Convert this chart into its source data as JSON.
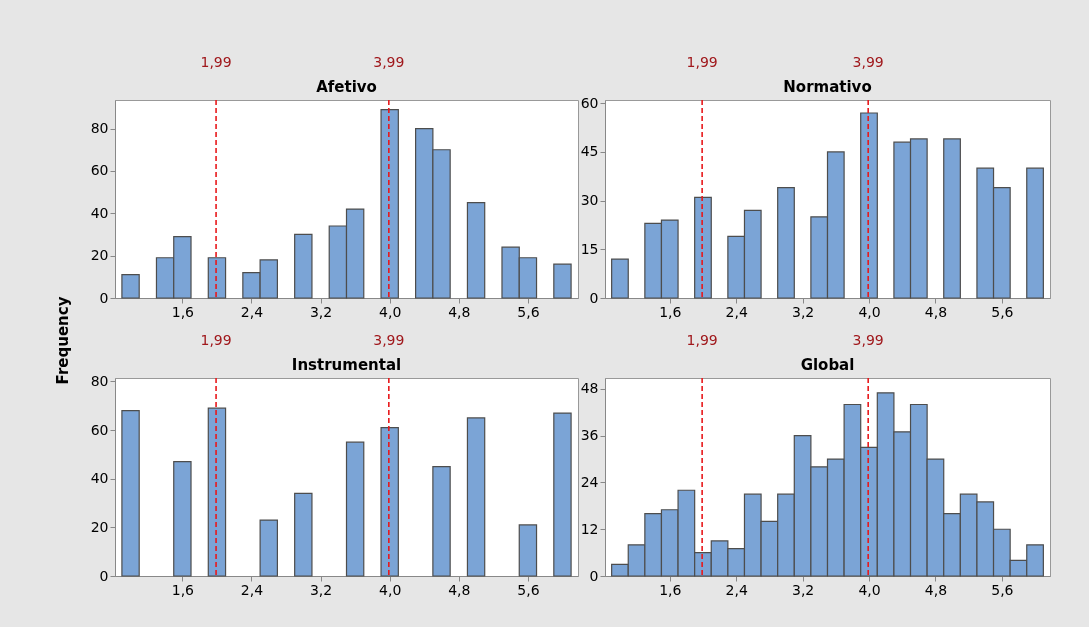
{
  "chart_data": [
    {
      "type": "histogram",
      "title": "Afetivo",
      "ylabel": "Frequency",
      "color": "#7ba4d6",
      "bins": [
        0.9,
        1.1,
        1.3,
        1.5,
        1.7,
        1.9,
        2.1,
        2.3,
        2.5,
        2.7,
        2.9,
        3.1,
        3.3,
        3.5,
        3.7,
        3.9,
        4.1,
        4.3,
        4.5,
        4.7,
        4.9,
        5.1,
        5.3,
        5.5,
        5.7,
        5.9,
        6.1
      ],
      "values": [
        11,
        0,
        19,
        29,
        0,
        19,
        0,
        12,
        18,
        0,
        30,
        0,
        34,
        42,
        0,
        89,
        0,
        80,
        70,
        0,
        45,
        0,
        24,
        19,
        0,
        16
      ],
      "xlim": [
        0.82,
        6.18
      ],
      "xticks": [
        {
          "value": 1.6,
          "label": "1,6"
        },
        {
          "value": 2.4,
          "label": "2,4"
        },
        {
          "value": 3.2,
          "label": "3,2"
        },
        {
          "value": 4.0,
          "label": "4,0"
        },
        {
          "value": 4.8,
          "label": "4,8"
        },
        {
          "value": 5.6,
          "label": "5,6"
        }
      ],
      "ylim": [
        0,
        93.5
      ],
      "yticks": [
        0,
        20,
        40,
        60,
        80
      ],
      "ref_lines": [
        {
          "axis": "x",
          "value": 1.99,
          "label": "1,99",
          "color": "#e8191c",
          "line_style": "dashed"
        },
        {
          "axis": "x",
          "value": 3.99,
          "label": "3,99",
          "color": "#e8191c",
          "line_style": "dashed"
        }
      ]
    },
    {
      "type": "histogram",
      "title": "Normativo",
      "color": "#7ba4d6",
      "bins": [
        0.9,
        1.1,
        1.3,
        1.5,
        1.7,
        1.9,
        2.1,
        2.3,
        2.5,
        2.7,
        2.9,
        3.1,
        3.3,
        3.5,
        3.7,
        3.9,
        4.1,
        4.3,
        4.5,
        4.7,
        4.9,
        5.1,
        5.3,
        5.5,
        5.7,
        5.9,
        6.1
      ],
      "values": [
        12,
        0,
        23,
        24,
        0,
        31,
        0,
        19,
        27,
        0,
        34,
        0,
        25,
        45,
        0,
        57,
        0,
        48,
        49,
        0,
        49,
        0,
        40,
        34,
        0,
        40
      ],
      "xlim": [
        0.82,
        6.18
      ],
      "xticks": [
        {
          "value": 1.6,
          "label": "1,6"
        },
        {
          "value": 2.4,
          "label": "2,4"
        },
        {
          "value": 3.2,
          "label": "3,2"
        },
        {
          "value": 4.0,
          "label": "4,0"
        },
        {
          "value": 4.8,
          "label": "4,8"
        },
        {
          "value": 5.6,
          "label": "5,6"
        }
      ],
      "ylim": [
        0,
        61
      ],
      "yticks": [
        0,
        15,
        30,
        45,
        60
      ],
      "ref_lines": [
        {
          "axis": "x",
          "value": 1.99,
          "label": "1,99",
          "color": "#e8191c",
          "line_style": "dashed"
        },
        {
          "axis": "x",
          "value": 3.99,
          "label": "3,99",
          "color": "#e8191c",
          "line_style": "dashed"
        }
      ]
    },
    {
      "type": "histogram",
      "title": "Instrumental",
      "color": "#7ba4d6",
      "bins": [
        0.9,
        1.1,
        1.3,
        1.5,
        1.7,
        1.9,
        2.1,
        2.3,
        2.5,
        2.7,
        2.9,
        3.1,
        3.3,
        3.5,
        3.7,
        3.9,
        4.1,
        4.3,
        4.5,
        4.7,
        4.9,
        5.1,
        5.3,
        5.5,
        5.7,
        5.9,
        6.1
      ],
      "values": [
        68,
        0,
        0,
        47,
        0,
        69,
        0,
        0,
        23,
        0,
        34,
        0,
        0,
        55,
        0,
        61,
        0,
        0,
        45,
        0,
        65,
        0,
        0,
        21,
        0,
        67
      ],
      "xlim": [
        0.82,
        6.18
      ],
      "xticks": [
        {
          "value": 1.6,
          "label": "1,6"
        },
        {
          "value": 2.4,
          "label": "2,4"
        },
        {
          "value": 3.2,
          "label": "3,2"
        },
        {
          "value": 4.0,
          "label": "4,0"
        },
        {
          "value": 4.8,
          "label": "4,8"
        },
        {
          "value": 5.6,
          "label": "5,6"
        }
      ],
      "ylim": [
        0,
        81.4
      ],
      "yticks": [
        0,
        20,
        40,
        60,
        80
      ],
      "ref_lines": [
        {
          "axis": "x",
          "value": 1.99,
          "label": "1,99",
          "color": "#e8191c",
          "line_style": "dashed"
        },
        {
          "axis": "x",
          "value": 3.99,
          "label": "3,99",
          "color": "#e8191c",
          "line_style": "dashed"
        }
      ]
    },
    {
      "type": "histogram",
      "title": "Global",
      "color": "#7ba4d6",
      "bins": [
        0.9,
        1.1,
        1.3,
        1.5,
        1.7,
        1.9,
        2.1,
        2.3,
        2.5,
        2.7,
        2.9,
        3.1,
        3.3,
        3.5,
        3.7,
        3.9,
        4.1,
        4.3,
        4.5,
        4.7,
        4.9,
        5.1,
        5.3,
        5.5,
        5.7,
        5.9,
        6.1
      ],
      "values": [
        3,
        8,
        16,
        17,
        22,
        6,
        9,
        7,
        21,
        14,
        21,
        36,
        28,
        30,
        44,
        33,
        47,
        37,
        44,
        30,
        16,
        21,
        19,
        12,
        4,
        8
      ],
      "xlim": [
        0.82,
        6.18
      ],
      "xticks": [
        {
          "value": 1.6,
          "label": "1,6"
        },
        {
          "value": 2.4,
          "label": "2,4"
        },
        {
          "value": 3.2,
          "label": "3,2"
        },
        {
          "value": 4.0,
          "label": "4,0"
        },
        {
          "value": 4.8,
          "label": "4,8"
        },
        {
          "value": 5.6,
          "label": "5,6"
        }
      ],
      "ylim": [
        0,
        50.8
      ],
      "yticks": [
        0,
        12,
        24,
        36,
        48
      ],
      "ref_lines": [
        {
          "axis": "x",
          "value": 1.99,
          "label": "1,99",
          "color": "#e8191c",
          "line_style": "dashed"
        },
        {
          "axis": "x",
          "value": 3.99,
          "label": "3,99",
          "color": "#e8191c",
          "line_style": "dashed"
        }
      ]
    }
  ]
}
